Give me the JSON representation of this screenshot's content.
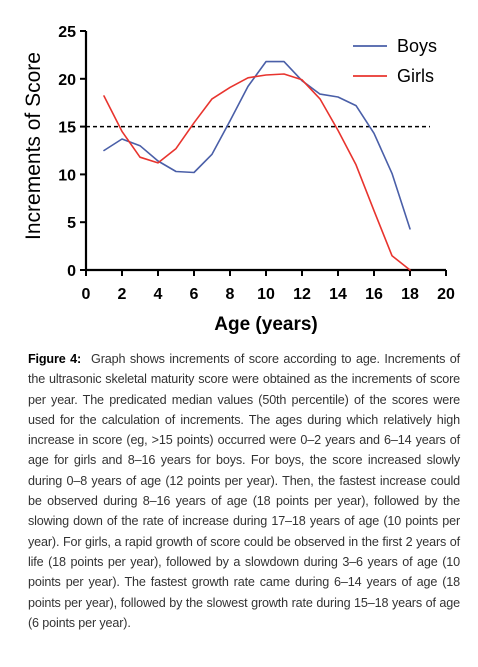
{
  "chart_data": {
    "type": "line",
    "title": "",
    "xlabel": "Age (years)",
    "ylabel": "Increments of Score",
    "xlim": [
      0,
      20
    ],
    "ylim": [
      0,
      25
    ],
    "xticks": [
      0,
      2,
      4,
      6,
      8,
      10,
      12,
      14,
      16,
      18,
      20
    ],
    "yticks": [
      0,
      5,
      10,
      15,
      20,
      25
    ],
    "grid": false,
    "legend_position": "top-right",
    "reference_line": {
      "y": 15,
      "style": "dashed"
    },
    "series": [
      {
        "name": "Boys",
        "color": "#4a5fa8",
        "x": [
          1,
          2,
          3,
          4,
          5,
          6,
          7,
          8,
          9,
          10,
          11,
          12,
          13,
          14,
          15,
          16,
          17,
          18
        ],
        "y": [
          12.5,
          13.7,
          13.0,
          11.4,
          10.3,
          10.2,
          12.1,
          15.6,
          19.2,
          21.8,
          21.8,
          19.8,
          18.4,
          18.1,
          17.2,
          14.3,
          10.1,
          4.3
        ]
      },
      {
        "name": "Girls",
        "color": "#e8342e",
        "x": [
          1,
          2,
          3,
          4,
          5,
          6,
          7,
          8,
          9,
          10,
          11,
          12,
          13,
          14,
          15,
          16,
          17,
          18
        ],
        "y": [
          18.2,
          14.5,
          11.8,
          11.2,
          12.7,
          15.4,
          17.9,
          19.1,
          20.1,
          20.4,
          20.5,
          19.9,
          17.9,
          14.6,
          11.0,
          6.2,
          1.5,
          0.0
        ]
      }
    ]
  },
  "caption": {
    "label": "Figure 4:",
    "text": "Graph shows increments of score according to age. Increments of the ultrasonic skeletal maturity score were obtained as the increments of score per year. The predicated median values (50th percentile) of the scores were used for the calculation of increments. The ages during which relatively high increase in score (eg, >15 points) occurred were 0–2 years and 6–14 years of age for girls and 8–16 years for boys. For boys, the score increased slowly during 0–8 years of age (12 points per year). Then, the fastest increase could be observed during 8–16 years of age (18 points per year), followed by the slowing down of the rate of increase during 17–18 years of age (10 points per year). For girls, a rapid growth of score could be observed in the first 2 years of life (18 points per year), followed by a slowdown during 3–6 years of age (10 points per year). The fastest growth rate came during 6–14 years of age (18 points per year), followed by the slowest growth rate during 15–18 years of age (6 points per year)."
  }
}
